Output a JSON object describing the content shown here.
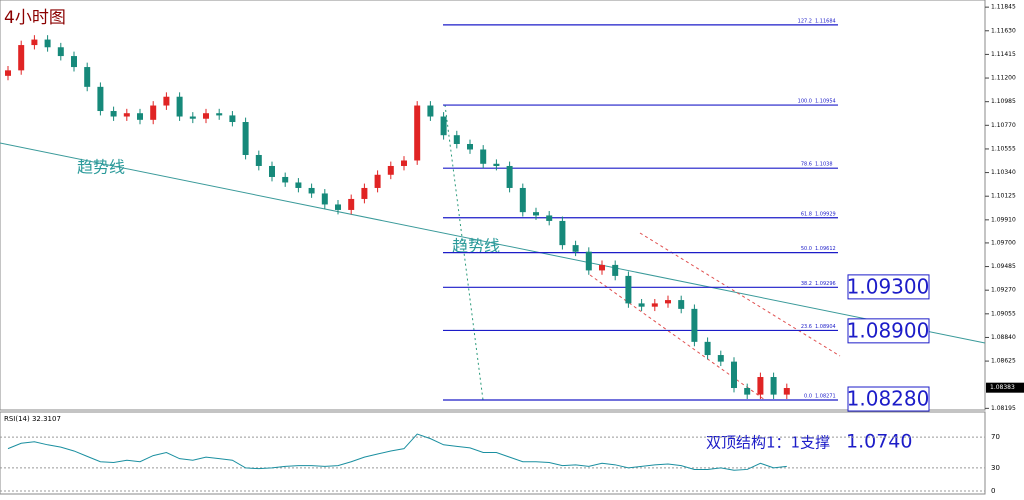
{
  "chart_data": [
    {
      "type": "candlestick",
      "title": "4小时图",
      "open": [
        1.1122,
        1.1127,
        1.115,
        1.1155,
        1.1148,
        1.114,
        1.113,
        1.1112,
        1.109,
        1.1085,
        1.1088,
        1.1082,
        1.1095,
        1.1103,
        1.1085,
        1.1083,
        1.1088,
        1.1086,
        1.108,
        1.105,
        1.104,
        1.103,
        1.1025,
        1.102,
        1.1015,
        1.1005,
        1.1,
        1.101,
        1.102,
        1.1032,
        1.104,
        1.1045,
        1.1095,
        1.1085,
        1.1068,
        1.106,
        1.1055,
        1.1042,
        1.104,
        1.102,
        1.0998,
        1.0995,
        1.099,
        1.0968,
        1.0962,
        1.0945,
        1.095,
        1.094,
        1.0915,
        1.0912,
        1.0915,
        1.0918,
        1.091,
        1.088,
        1.0868,
        1.0862,
        1.0838,
        1.0832,
        1.0848,
        1.0832
      ],
      "close": [
        1.1127,
        1.115,
        1.1155,
        1.1148,
        1.114,
        1.113,
        1.1112,
        1.109,
        1.1085,
        1.1088,
        1.1082,
        1.1095,
        1.1103,
        1.1085,
        1.1083,
        1.1088,
        1.1086,
        1.108,
        1.105,
        1.104,
        1.103,
        1.1025,
        1.102,
        1.1015,
        1.1005,
        1.1,
        1.101,
        1.102,
        1.1032,
        1.104,
        1.1045,
        1.1095,
        1.1085,
        1.1068,
        1.106,
        1.1055,
        1.1042,
        1.104,
        1.102,
        1.0998,
        1.0995,
        1.099,
        1.0968,
        1.0962,
        1.0945,
        1.095,
        1.094,
        1.0915,
        1.0912,
        1.0915,
        1.0918,
        1.091,
        1.088,
        1.0868,
        1.0862,
        1.0838,
        1.0832,
        1.0848,
        1.0832,
        1.0838
      ],
      "high": [
        1.1131,
        1.1154,
        1.1159,
        1.1159,
        1.1152,
        1.1144,
        1.1134,
        1.1116,
        1.1094,
        1.1092,
        1.1092,
        1.1099,
        1.1107,
        1.1107,
        1.1089,
        1.1092,
        1.1092,
        1.109,
        1.1084,
        1.1054,
        1.1044,
        1.1034,
        1.1029,
        1.1024,
        1.1019,
        1.1009,
        1.1014,
        1.1024,
        1.1036,
        1.1044,
        1.1049,
        1.1099,
        1.1099,
        1.1089,
        1.1072,
        1.1064,
        1.1059,
        1.1046,
        1.1044,
        1.1024,
        1.1002,
        1.0999,
        1.0994,
        1.0972,
        1.0966,
        1.0954,
        1.0954,
        1.0944,
        1.0919,
        1.0919,
        1.0922,
        1.0922,
        1.0914,
        1.0884,
        1.0872,
        1.0866,
        1.0842,
        1.0852,
        1.0852,
        1.0842
      ],
      "low": [
        1.1118,
        1.1123,
        1.1146,
        1.1144,
        1.1136,
        1.1126,
        1.1108,
        1.1086,
        1.1081,
        1.1081,
        1.1078,
        1.1078,
        1.1091,
        1.1081,
        1.1079,
        1.1079,
        1.1082,
        1.1076,
        1.1046,
        1.1036,
        1.1026,
        1.1021,
        1.1016,
        1.1011,
        1.1001,
        1.0996,
        1.0996,
        1.1006,
        1.1016,
        1.1028,
        1.1036,
        1.1041,
        1.1081,
        1.1064,
        1.1056,
        1.1051,
        1.1038,
        1.1036,
        1.1016,
        1.0994,
        1.0991,
        1.0986,
        1.0964,
        1.0958,
        1.0941,
        1.0941,
        1.0936,
        1.0911,
        1.0908,
        1.0908,
        1.0911,
        1.0906,
        1.0876,
        1.0864,
        1.0858,
        1.0834,
        1.0828,
        1.0828,
        1.0828,
        1.0828
      ],
      "up_color": "#e02424",
      "down_color": "#16897a",
      "ylim": [
        1.0818,
        1.1191
      ],
      "yticks": [
        {
          "value": 1.11845,
          "label": "1.11845"
        },
        {
          "value": 1.1163,
          "label": "1.11630"
        },
        {
          "value": 1.11415,
          "label": "1.11415"
        },
        {
          "value": 1.112,
          "label": "1.11200"
        },
        {
          "value": 1.10985,
          "label": "1.10985"
        },
        {
          "value": 1.1077,
          "label": "1.10770"
        },
        {
          "value": 1.10555,
          "label": "1.10555"
        },
        {
          "value": 1.1034,
          "label": "1.10340"
        },
        {
          "value": 1.10125,
          "label": "1.10125"
        },
        {
          "value": 1.0991,
          "label": "1.09910"
        },
        {
          "value": 1.097,
          "label": "1.09700"
        },
        {
          "value": 1.09485,
          "label": "1.09485"
        },
        {
          "value": 1.0927,
          "label": "1.09270"
        },
        {
          "value": 1.09055,
          "label": "1.09055"
        },
        {
          "value": 1.0884,
          "label": "1.08840"
        },
        {
          "value": 1.08625,
          "label": "1.08625"
        },
        {
          "value": 1.08195,
          "label": "1.08195"
        }
      ],
      "current_price": 1.08383,
      "fib_levels": [
        {
          "level": "127.2",
          "value": 1.11684
        },
        {
          "level": "100.0",
          "value": 1.10954
        },
        {
          "level": "78.6",
          "value": 1.1038
        },
        {
          "level": "61.8",
          "value": 1.09929
        },
        {
          "level": "50.0",
          "value": 1.09612
        },
        {
          "level": "38.2",
          "value": 1.09296
        },
        {
          "level": "23.6",
          "value": 1.08904
        },
        {
          "level": "0.0",
          "value": 1.08271
        }
      ],
      "fib_color": "#1c1cc8",
      "price_labels": [
        {
          "value": 1.093,
          "label": "1.09300"
        },
        {
          "value": 1.089,
          "label": "1.08900"
        },
        {
          "value": 1.0828,
          "label": "1.08280"
        }
      ],
      "trendline_labels": [
        "趋势线",
        "趋势线"
      ],
      "note": "双顶结构1：1支撑",
      "note_value": "1.0740"
    },
    {
      "type": "line",
      "title": "RSI(14) 32.3107",
      "color": "#1a8fa0",
      "values": [
        55,
        62,
        64,
        60,
        57,
        52,
        45,
        38,
        37,
        40,
        38,
        46,
        50,
        42,
        40,
        44,
        42,
        40,
        30,
        29,
        30,
        32,
        33,
        33,
        32,
        33,
        38,
        44,
        48,
        52,
        55,
        74,
        68,
        60,
        58,
        56,
        50,
        50,
        44,
        38,
        38,
        37,
        33,
        34,
        32,
        36,
        34,
        30,
        32,
        34,
        35,
        33,
        28,
        28,
        30,
        27,
        28,
        36,
        30,
        32
      ],
      "ylim": [
        0,
        100
      ],
      "yticks": [
        70,
        30,
        0
      ]
    }
  ]
}
